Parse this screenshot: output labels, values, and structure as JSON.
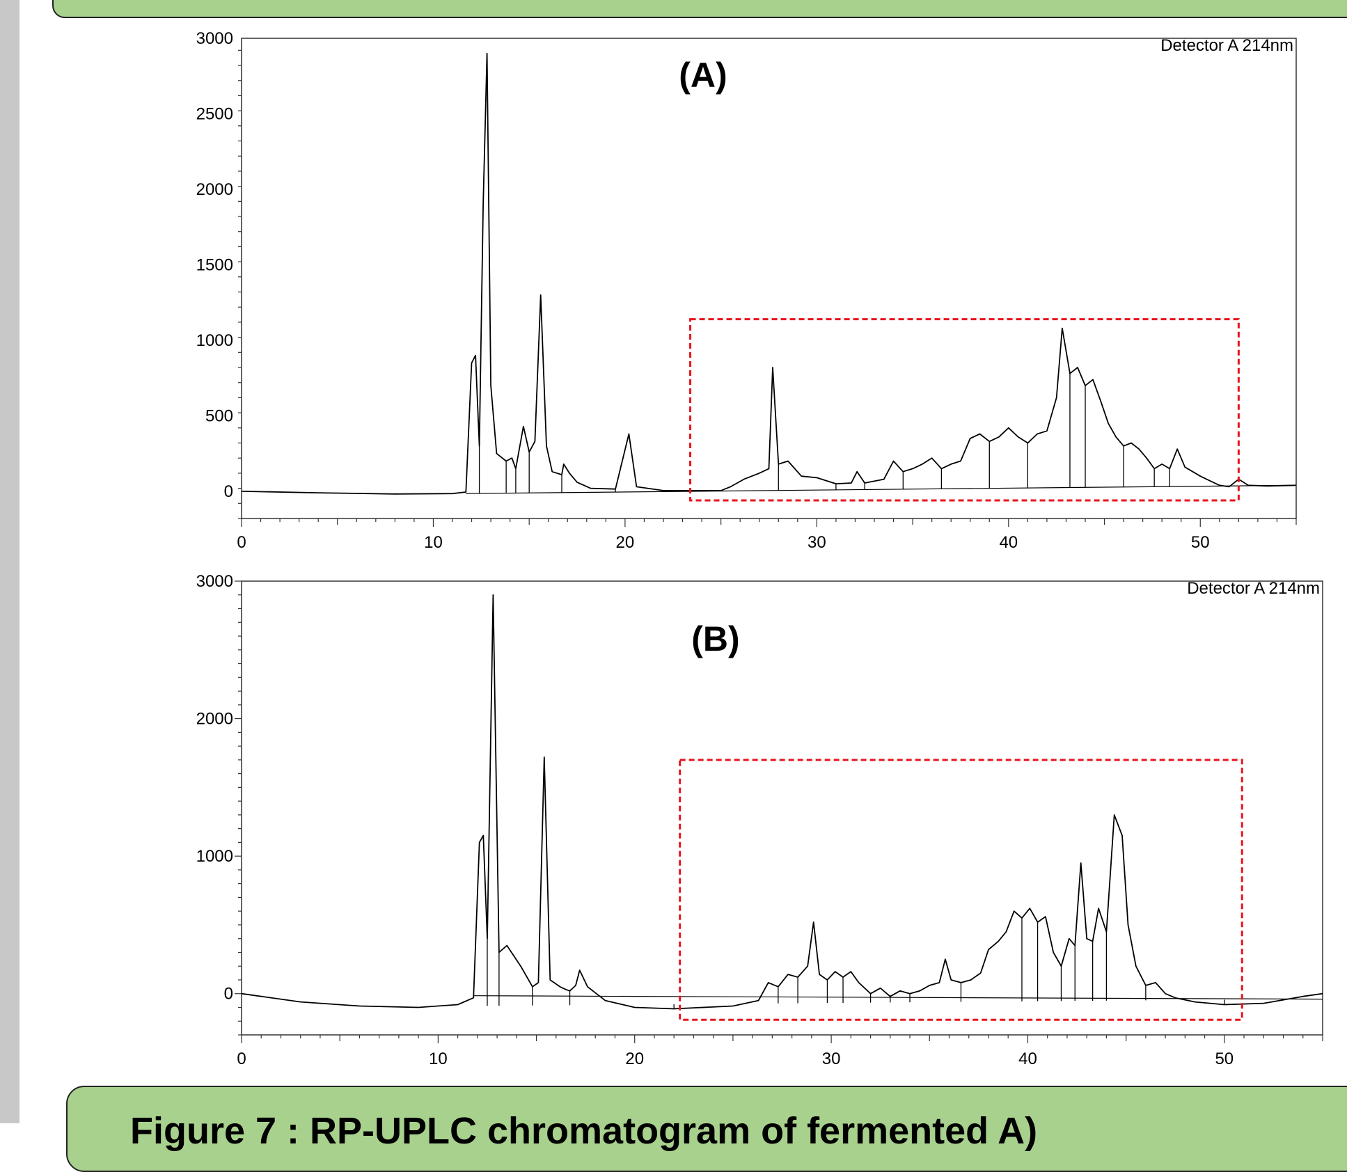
{
  "colors": {
    "banner": "#a9d18e",
    "highlight_box": "#e8141c",
    "trace": "#000000",
    "sidebar": "#c8c8c8"
  },
  "caption": "Figure 7 : RP-UPLC chromatogram of fermented A)",
  "chart_data": [
    {
      "type": "line",
      "panel_label": "(A)",
      "detector_label": "Detector A 214nm",
      "xlim": [
        0,
        55
      ],
      "ylim": [
        -180,
        3000
      ],
      "x_ticks": [
        0,
        10,
        20,
        30,
        40,
        50
      ],
      "y_ticks": [
        0,
        500,
        1000,
        1500,
        2000,
        2500,
        3000
      ],
      "series": [
        {
          "points": [
            [
              0,
              0
            ],
            [
              4,
              -10
            ],
            [
              8,
              -18
            ],
            [
              11,
              -15
            ],
            [
              11.7,
              -5
            ],
            [
              12.0,
              850
            ],
            [
              12.2,
              900
            ],
            [
              12.4,
              300
            ],
            [
              12.6,
              1900
            ],
            [
              12.8,
              2900
            ],
            [
              13.0,
              700
            ],
            [
              13.3,
              250
            ],
            [
              13.8,
              200
            ],
            [
              14.1,
              220
            ],
            [
              14.3,
              150
            ],
            [
              14.7,
              430
            ],
            [
              15.0,
              260
            ],
            [
              15.3,
              330
            ],
            [
              15.6,
              1300
            ],
            [
              15.9,
              300
            ],
            [
              16.2,
              130
            ],
            [
              16.7,
              110
            ],
            [
              16.8,
              180
            ],
            [
              17.1,
              120
            ],
            [
              17.5,
              60
            ],
            [
              18.2,
              20
            ],
            [
              19.5,
              15
            ],
            [
              20.2,
              380
            ],
            [
              20.6,
              30
            ],
            [
              22,
              5
            ],
            [
              25,
              5
            ],
            [
              25.5,
              30
            ],
            [
              26.2,
              80
            ],
            [
              27.0,
              120
            ],
            [
              27.5,
              150
            ],
            [
              27.7,
              820
            ],
            [
              28.0,
              180
            ],
            [
              28.5,
              200
            ],
            [
              29.2,
              100
            ],
            [
              30,
              90
            ],
            [
              31,
              50
            ],
            [
              31.8,
              55
            ],
            [
              32.1,
              130
            ],
            [
              32.5,
              55
            ],
            [
              33.5,
              80
            ],
            [
              34.0,
              200
            ],
            [
              34.5,
              130
            ],
            [
              35.0,
              150
            ],
            [
              35.5,
              180
            ],
            [
              36.0,
              220
            ],
            [
              36.5,
              150
            ],
            [
              37.0,
              180
            ],
            [
              37.5,
              200
            ],
            [
              38.0,
              350
            ],
            [
              38.5,
              380
            ],
            [
              39.0,
              330
            ],
            [
              39.5,
              360
            ],
            [
              40.0,
              420
            ],
            [
              40.5,
              360
            ],
            [
              41.0,
              320
            ],
            [
              41.5,
              380
            ],
            [
              42.0,
              400
            ],
            [
              42.5,
              620
            ],
            [
              42.8,
              1080
            ],
            [
              43.2,
              780
            ],
            [
              43.6,
              820
            ],
            [
              44.0,
              700
            ],
            [
              44.4,
              740
            ],
            [
              44.8,
              600
            ],
            [
              45.2,
              450
            ],
            [
              45.6,
              360
            ],
            [
              46.0,
              300
            ],
            [
              46.4,
              320
            ],
            [
              46.8,
              280
            ],
            [
              47.2,
              220
            ],
            [
              47.6,
              150
            ],
            [
              48.0,
              180
            ],
            [
              48.4,
              150
            ],
            [
              48.8,
              280
            ],
            [
              49.2,
              160
            ],
            [
              49.6,
              130
            ],
            [
              50.0,
              100
            ],
            [
              50.5,
              70
            ],
            [
              51.0,
              40
            ],
            [
              51.5,
              30
            ],
            [
              52.0,
              80
            ],
            [
              52.5,
              40
            ],
            [
              53.5,
              35
            ],
            [
              55,
              40
            ]
          ]
        }
      ]
    },
    {
      "type": "line",
      "panel_label": "(B)",
      "detector_label": "Detector A 214nm",
      "xlim": [
        0,
        55
      ],
      "ylim": [
        -300,
        3000
      ],
      "x_ticks": [
        0,
        10,
        20,
        30,
        40,
        50
      ],
      "y_ticks": [
        0,
        1000,
        2000,
        3000
      ],
      "series": [
        {
          "points": [
            [
              0,
              0
            ],
            [
              1,
              -20
            ],
            [
              3,
              -60
            ],
            [
              6,
              -90
            ],
            [
              9,
              -100
            ],
            [
              11,
              -80
            ],
            [
              11.8,
              -30
            ],
            [
              12.1,
              1100
            ],
            [
              12.3,
              1150
            ],
            [
              12.5,
              400
            ],
            [
              12.8,
              2900
            ],
            [
              13.1,
              300
            ],
            [
              13.5,
              350
            ],
            [
              14.2,
              200
            ],
            [
              14.8,
              50
            ],
            [
              15.1,
              80
            ],
            [
              15.4,
              1720
            ],
            [
              15.7,
              100
            ],
            [
              16.2,
              50
            ],
            [
              16.5,
              30
            ],
            [
              16.7,
              20
            ],
            [
              17.0,
              60
            ],
            [
              17.2,
              170
            ],
            [
              17.6,
              50
            ],
            [
              18.5,
              -50
            ],
            [
              20,
              -100
            ],
            [
              22,
              -110
            ],
            [
              25,
              -90
            ],
            [
              26.3,
              -50
            ],
            [
              26.8,
              80
            ],
            [
              27.3,
              50
            ],
            [
              27.8,
              140
            ],
            [
              28.3,
              120
            ],
            [
              28.8,
              200
            ],
            [
              29.1,
              520
            ],
            [
              29.4,
              140
            ],
            [
              29.8,
              100
            ],
            [
              30.2,
              160
            ],
            [
              30.6,
              120
            ],
            [
              31.0,
              160
            ],
            [
              31.4,
              80
            ],
            [
              32.0,
              0
            ],
            [
              32.5,
              40
            ],
            [
              33.0,
              -20
            ],
            [
              33.5,
              20
            ],
            [
              34.0,
              0
            ],
            [
              34.5,
              20
            ],
            [
              35.0,
              60
            ],
            [
              35.5,
              80
            ],
            [
              35.8,
              250
            ],
            [
              36.1,
              100
            ],
            [
              36.6,
              80
            ],
            [
              37.1,
              100
            ],
            [
              37.6,
              150
            ],
            [
              38.0,
              320
            ],
            [
              38.5,
              380
            ],
            [
              38.9,
              450
            ],
            [
              39.3,
              600
            ],
            [
              39.7,
              550
            ],
            [
              40.1,
              620
            ],
            [
              40.5,
              520
            ],
            [
              40.9,
              560
            ],
            [
              41.3,
              300
            ],
            [
              41.7,
              200
            ],
            [
              42.1,
              400
            ],
            [
              42.4,
              350
            ],
            [
              42.7,
              950
            ],
            [
              43.0,
              400
            ],
            [
              43.3,
              380
            ],
            [
              43.6,
              620
            ],
            [
              44.0,
              450
            ],
            [
              44.4,
              1300
            ],
            [
              44.8,
              1150
            ],
            [
              45.1,
              500
            ],
            [
              45.5,
              200
            ],
            [
              46.0,
              60
            ],
            [
              46.5,
              80
            ],
            [
              47.0,
              0
            ],
            [
              47.5,
              -30
            ],
            [
              48.5,
              -60
            ],
            [
              50,
              -80
            ],
            [
              52,
              -70
            ],
            [
              54,
              -20
            ],
            [
              55,
              0
            ]
          ]
        }
      ]
    }
  ]
}
